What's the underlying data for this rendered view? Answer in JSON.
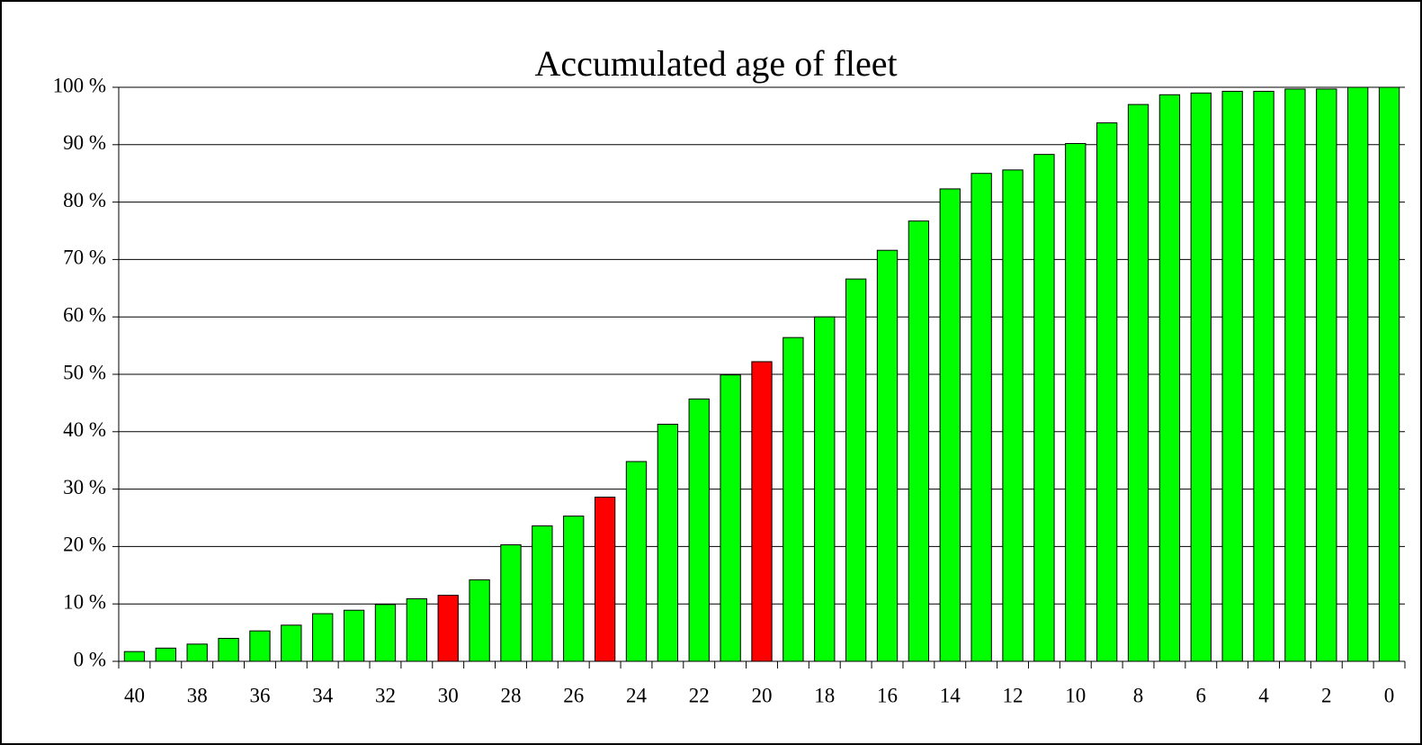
{
  "chart_data": {
    "type": "bar",
    "title": "Accumulated age of fleet",
    "categories": [
      40,
      null,
      38,
      null,
      36,
      null,
      34,
      null,
      32,
      null,
      30,
      null,
      28,
      null,
      26,
      null,
      24,
      null,
      22,
      null,
      20,
      null,
      18,
      null,
      16,
      null,
      14,
      null,
      12,
      null,
      10,
      null,
      8,
      null,
      6,
      null,
      4,
      null,
      2,
      null,
      0
    ],
    "values": [
      1.7,
      2.3,
      3.0,
      4.0,
      5.3,
      6.3,
      8.3,
      8.9,
      9.9,
      10.9,
      11.5,
      14.2,
      20.3,
      23.6,
      25.3,
      28.6,
      34.8,
      41.3,
      45.7,
      49.9,
      52.2,
      56.4,
      60.0,
      66.6,
      71.6,
      76.7,
      82.3,
      85.0,
      85.6,
      88.3,
      90.2,
      93.8,
      97.0,
      98.7,
      99.0,
      99.3,
      99.3,
      99.7,
      99.7,
      100,
      100
    ],
    "colors": [
      "#00ff00",
      "#00ff00",
      "#00ff00",
      "#00ff00",
      "#00ff00",
      "#00ff00",
      "#00ff00",
      "#00ff00",
      "#00ff00",
      "#00ff00",
      "#ff0000",
      "#00ff00",
      "#00ff00",
      "#00ff00",
      "#00ff00",
      "#ff0000",
      "#00ff00",
      "#00ff00",
      "#00ff00",
      "#00ff00",
      "#ff0000",
      "#00ff00",
      "#00ff00",
      "#00ff00",
      "#00ff00",
      "#00ff00",
      "#00ff00",
      "#00ff00",
      "#00ff00",
      "#00ff00",
      "#00ff00",
      "#00ff00",
      "#00ff00",
      "#00ff00",
      "#00ff00",
      "#00ff00",
      "#00ff00",
      "#00ff00",
      "#00ff00",
      "#00ff00",
      "#00ff00"
    ],
    "ylim": [
      0,
      100
    ],
    "yticks": [
      {
        "value": 0,
        "label": "0 %"
      },
      {
        "value": 10,
        "label": "10 %"
      },
      {
        "value": 20,
        "label": "20 %"
      },
      {
        "value": 30,
        "label": "30 %"
      },
      {
        "value": 40,
        "label": "40 %"
      },
      {
        "value": 50,
        "label": "50 %"
      },
      {
        "value": 60,
        "label": "60 %"
      },
      {
        "value": 70,
        "label": "70 %"
      },
      {
        "value": 80,
        "label": "80 %"
      },
      {
        "value": 90,
        "label": "90 %"
      },
      {
        "value": 100,
        "label": "100 %"
      }
    ],
    "grid": true
  }
}
